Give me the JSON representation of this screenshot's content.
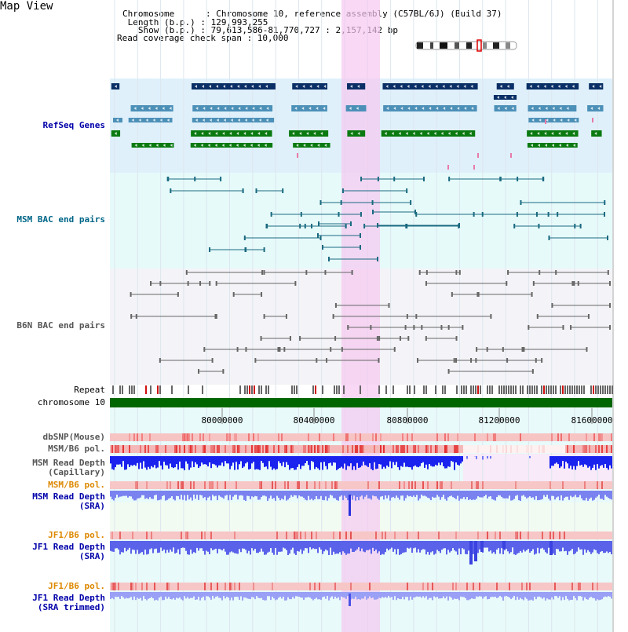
{
  "header": {
    "title": "Map View",
    "chromosome_line": "Chromosome      : Chromosome 10, reference assembly (C57BL/6J) (Build 37)",
    "length_line": " Length (b.p.) : 129,993,255",
    "show_line": "   Show (b.p.) : 79,613,586-81,770,727 : 2,157,142 bp",
    "coverage_line": "Read coverage check span : 10,000"
  },
  "tracks": {
    "refseq": "RefSeq Genes",
    "msm_bac": "MSM BAC end pairs",
    "b6n_bac": "B6N BAC end pairs",
    "repeat": "Repeat",
    "chromosome": "chromosome 10",
    "dbsnp": "dbSNP(Mouse)",
    "msm_b6_pol_1": "MSM/B6 pol.",
    "msm_depth_cap_1": "MSM Read Depth",
    "msm_depth_cap_2": "(Capillary)",
    "msm_b6_pol_2": "MSM/B6 pol.",
    "msm_depth_sra_1": "MSM Read Depth",
    "msm_depth_sra_2": "(SRA)",
    "jf1_b6_pol_1": "JF1/B6 pol.",
    "jf1_depth_sra_1": "JF1 Read Depth",
    "jf1_depth_sra_2": "(SRA)",
    "jf1_b6_pol_2": "JF1/B6 pol.",
    "jf1_depth_trim_1": "JF1 Read Depth",
    "jf1_depth_trim_2": "(SRA trimmed)"
  },
  "axis": {
    "ticks": [
      "80000000",
      "80400000",
      "80800000",
      "81200000",
      "81600000"
    ]
  },
  "colors": {
    "refseq_bg": "#dff0fb",
    "bac_bg": "#e6fafa",
    "highlight": "#f5c8ef",
    "chromosome_bar": "#006600",
    "label_blue": "#0000aa",
    "label_teal": "#006688",
    "label_gray": "#555555",
    "label_orange": "#dd8800"
  }
}
